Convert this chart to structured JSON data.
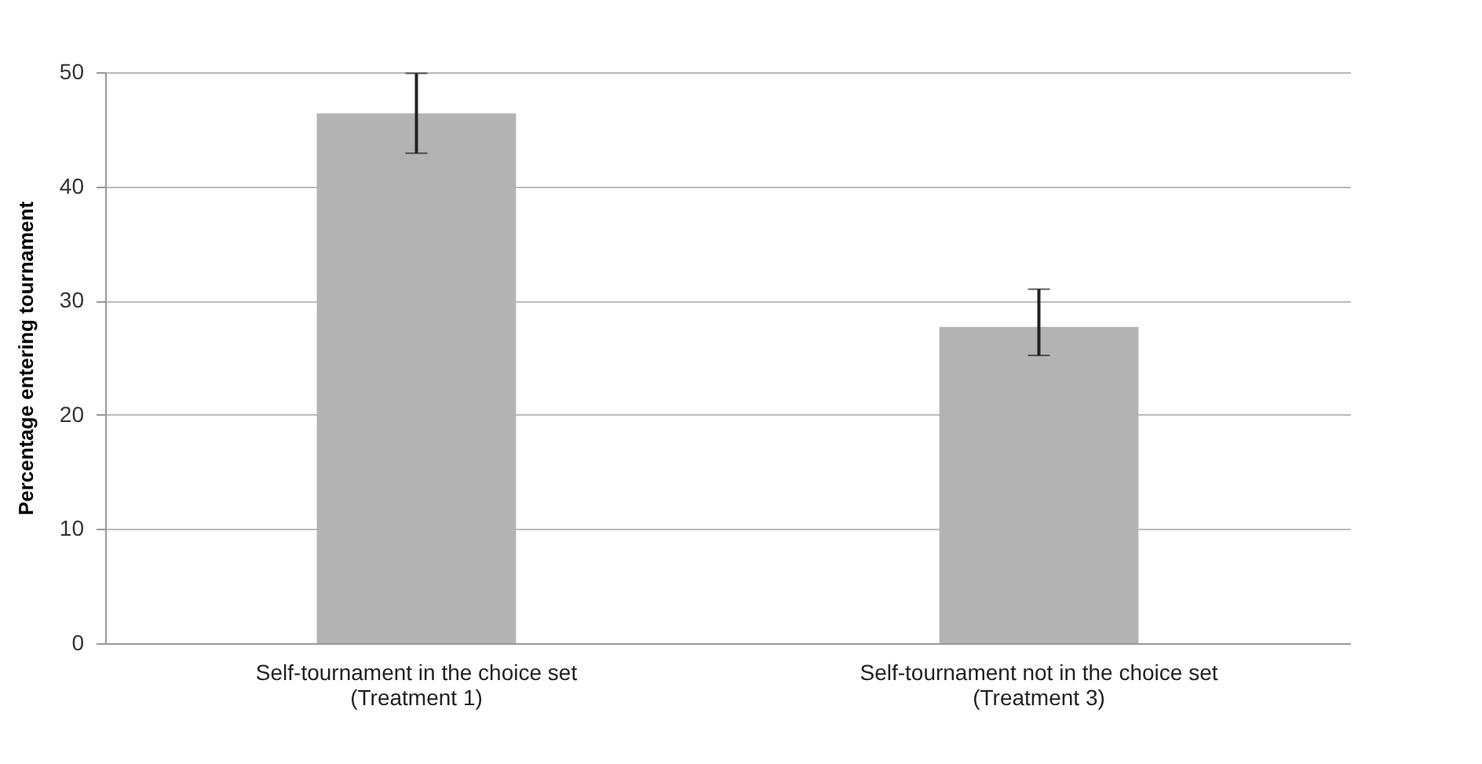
{
  "chart_data": {
    "type": "bar",
    "ylabel": "Percentage entering tournament",
    "categories": [
      "Self-tournament in the choice set\n(Treatment 1)",
      "Self-tournament not in the choice set\n(Treatment 3)"
    ],
    "values": [
      46.4,
      27.7
    ],
    "errors": [
      [
        42.9,
        49.9
      ],
      [
        25.2,
        31.0
      ]
    ],
    "color": "#b3b3b3",
    "ylim": [
      0,
      50
    ],
    "yticks": [
      0,
      10,
      20,
      30,
      40,
      50
    ],
    "grid": "y"
  }
}
